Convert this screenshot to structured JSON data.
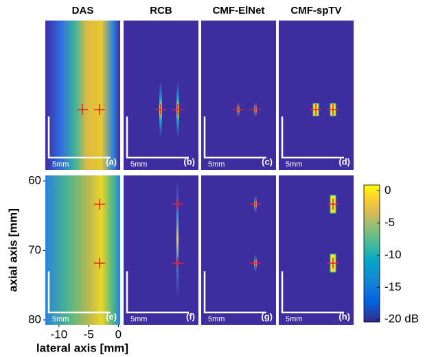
{
  "columns": [
    "DAS",
    "RCB",
    "CMF-ElNet",
    "CMF-spTV"
  ],
  "panels": [
    "(a)",
    "(b)",
    "(c)",
    "(d)",
    "(e)",
    "(f)",
    "(g)",
    "(h)"
  ],
  "scale_bar": "5mm",
  "axes": {
    "xlabel": "lateral axis [mm]",
    "ylabel": "axial axis [mm]",
    "xlim": [
      -12.3,
      0.3
    ],
    "xticks": [
      -10,
      -5,
      0
    ],
    "ylim": [
      59.2,
      80.7
    ],
    "yticks": [
      60,
      70,
      80
    ]
  },
  "colorbar": {
    "lim": [
      -20.4,
      0.9
    ],
    "ticks": [
      0,
      -5,
      -10,
      -15,
      {
        "value": -20,
        "label": "-20 dB"
      }
    ]
  }
}
